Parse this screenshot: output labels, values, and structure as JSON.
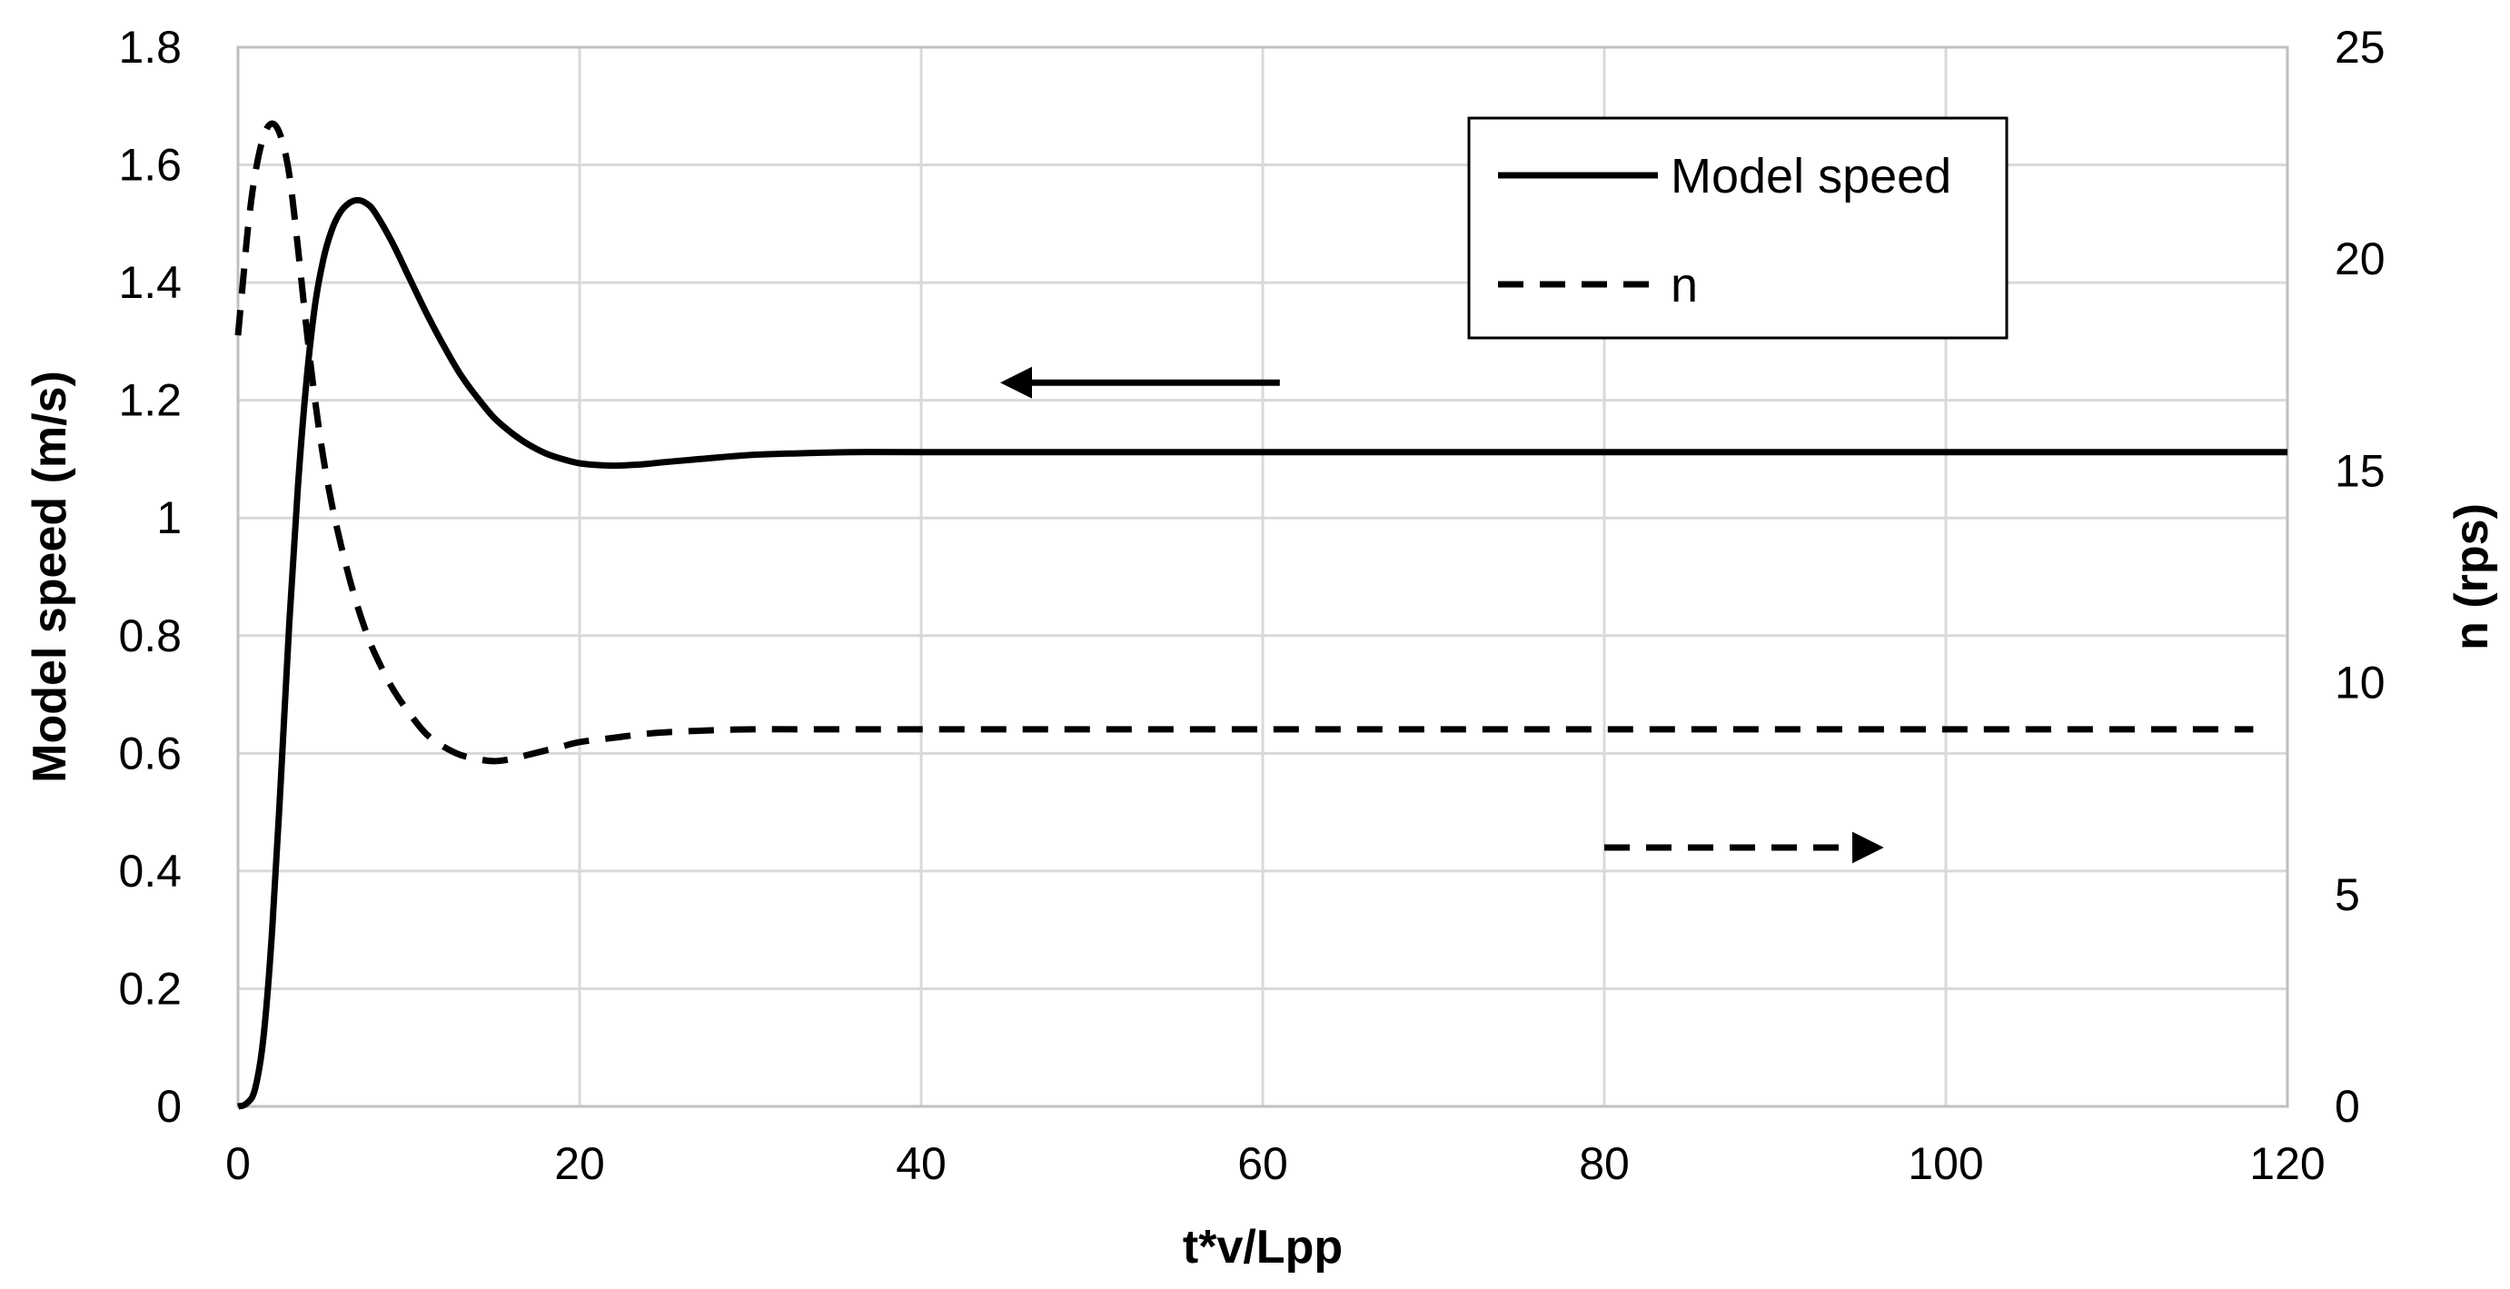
{
  "chart_data": {
    "type": "line",
    "title": "",
    "xlabel": "t*v/Lpp",
    "ylabel": "Model speed (m/s)",
    "y2label": "n (rps)",
    "xlim": [
      0,
      120
    ],
    "ylim": [
      0,
      1.8
    ],
    "y2lim": [
      0,
      25
    ],
    "xticks": [
      0,
      20,
      40,
      60,
      80,
      100,
      120
    ],
    "xtick_labels": [
      "0",
      "20",
      "40",
      "60",
      "80",
      "100",
      "120"
    ],
    "yticks": [
      0,
      0.2,
      0.4,
      0.6,
      0.8,
      1.0,
      1.2,
      1.4,
      1.6,
      1.8
    ],
    "ytick_labels": [
      "0",
      "0.2",
      "0.4",
      "0.6",
      "0.8",
      "1",
      "1.2",
      "1.4",
      "1.6",
      "1.8"
    ],
    "y2ticks": [
      0,
      5,
      10,
      15,
      20,
      25
    ],
    "y2tick_labels": [
      "0",
      "5",
      "10",
      "15",
      "20",
      "25"
    ],
    "grid": true,
    "legend_position": "top-right",
    "series": [
      {
        "name": "Model speed",
        "axis": "left",
        "style": "solid",
        "color": "#000000",
        "x": [
          0,
          0.5,
          1,
          1.5,
          2,
          2.5,
          3,
          3.5,
          4,
          4.5,
          5,
          5.5,
          6,
          6.5,
          7,
          7.5,
          8,
          9,
          10,
          11,
          12,
          13,
          14,
          15,
          16,
          17,
          18,
          19,
          20,
          21,
          22,
          23,
          24,
          25,
          27,
          30,
          33,
          36,
          40,
          50,
          60,
          80,
          100,
          120
        ],
        "values": [
          0,
          0.005,
          0.03,
          0.12,
          0.3,
          0.55,
          0.82,
          1.05,
          1.23,
          1.36,
          1.44,
          1.49,
          1.52,
          1.535,
          1.54,
          1.535,
          1.52,
          1.47,
          1.41,
          1.35,
          1.295,
          1.245,
          1.205,
          1.17,
          1.145,
          1.125,
          1.11,
          1.1,
          1.093,
          1.09,
          1.089,
          1.09,
          1.092,
          1.095,
          1.1,
          1.107,
          1.11,
          1.112,
          1.112,
          1.112,
          1.112,
          1.112,
          1.112,
          1.112
        ]
      },
      {
        "name": "n",
        "axis": "right",
        "style": "dashed",
        "color": "#000000",
        "x": [
          0,
          0.3,
          0.6,
          1,
          1.5,
          2,
          2.5,
          3,
          3.5,
          4,
          4.5,
          5,
          5.5,
          6,
          6.5,
          7,
          7.5,
          8,
          9,
          10,
          11,
          12,
          13,
          14,
          15,
          16,
          17,
          18,
          19,
          20,
          22,
          24,
          26,
          28,
          30,
          35,
          40,
          60,
          80,
          100,
          118
        ],
        "values": [
          18.2,
          19.5,
          20.8,
          22.0,
          22.9,
          23.2,
          22.9,
          22.0,
          20.3,
          18.4,
          16.7,
          15.3,
          14.2,
          13.3,
          12.5,
          11.8,
          11.2,
          10.7,
          9.9,
          9.3,
          8.8,
          8.5,
          8.3,
          8.2,
          8.15,
          8.2,
          8.3,
          8.4,
          8.5,
          8.6,
          8.7,
          8.8,
          8.85,
          8.88,
          8.9,
          8.9,
          8.9,
          8.9,
          8.9,
          8.9,
          8.9
        ]
      }
    ],
    "annotations": [
      {
        "type": "arrow",
        "direction": "left",
        "style": "solid",
        "x_from": 61,
        "x_to": 45,
        "y_axis": "left",
        "y": 1.23
      },
      {
        "type": "arrow",
        "direction": "right",
        "style": "dashed",
        "x_from": 80,
        "x_to": 96,
        "y_axis": "left",
        "y": 0.44
      }
    ]
  }
}
